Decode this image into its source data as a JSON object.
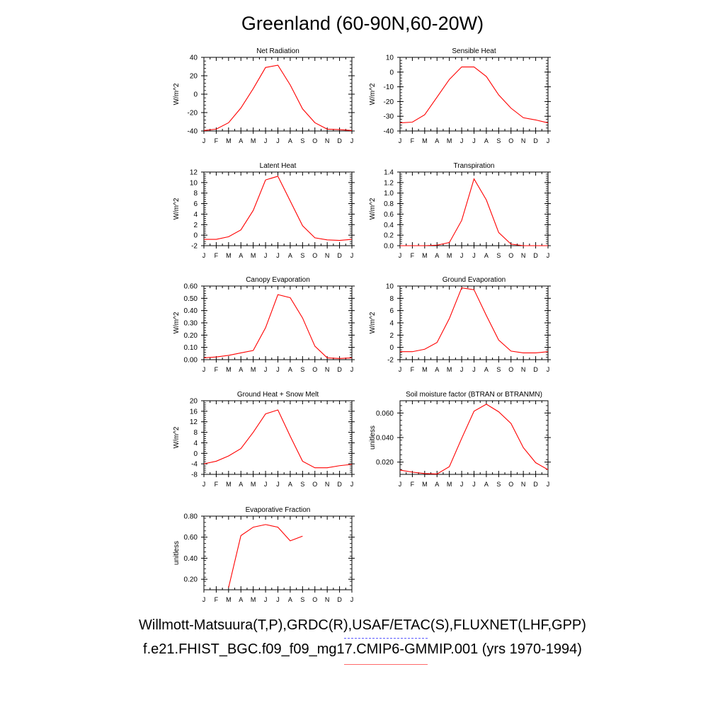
{
  "title": "Greenland (60-90N,60-20W)",
  "footer": {
    "line1": "Willmott-Matsuura(T,P),GRDC(R),USAF/ETAC(S),FLUXNET(LHF,GPP)",
    "line2": "f.e21.FHIST_BGC.f09_f09_mg17.CMIP6-GMMIP.001 (yrs 1970-1994)"
  },
  "colors": {
    "series": "#ff0000",
    "legend_obs": "#5a5aff",
    "legend_model": "#ff6a6a"
  },
  "chart_data": [
    {
      "type": "line",
      "title": "Net Radiation",
      "ylabel": "W/m^2",
      "categories": [
        "J",
        "F",
        "M",
        "A",
        "M",
        "J",
        "J",
        "A",
        "S",
        "O",
        "N",
        "D",
        "J"
      ],
      "ylim": [
        -40,
        40
      ],
      "yticks": [
        -40,
        -20,
        0,
        20,
        40
      ],
      "ytick_labels": [
        "-40",
        "-20",
        "0",
        "20",
        "40"
      ],
      "series": [
        {
          "values": [
            -39.5,
            -38,
            -31,
            -15,
            6,
            29,
            31.5,
            10,
            -16,
            -31,
            -38,
            -38.5,
            -39.5
          ]
        }
      ]
    },
    {
      "type": "line",
      "title": "Sensible Heat",
      "ylabel": "W/m^2",
      "categories": [
        "J",
        "F",
        "M",
        "A",
        "M",
        "J",
        "J",
        "A",
        "S",
        "O",
        "N",
        "D",
        "J"
      ],
      "ylim": [
        -40,
        10
      ],
      "yticks": [
        -40,
        -30,
        -20,
        -10,
        0,
        10
      ],
      "ytick_labels": [
        "-40",
        "-30",
        "-20",
        "-10",
        "0",
        "10"
      ],
      "series": [
        {
          "values": [
            -34.5,
            -34,
            -29,
            -17,
            -5,
            3.5,
            3.5,
            -3,
            -15.5,
            -24.5,
            -31,
            -32.5,
            -34.5
          ]
        }
      ]
    },
    {
      "type": "line",
      "title": "Latent Heat",
      "ylabel": "W/m^2",
      "categories": [
        "J",
        "F",
        "M",
        "A",
        "M",
        "J",
        "J",
        "A",
        "S",
        "O",
        "N",
        "D",
        "J"
      ],
      "ylim": [
        -2,
        12
      ],
      "yticks": [
        -2,
        0,
        2,
        4,
        6,
        8,
        10,
        12
      ],
      "ytick_labels": [
        "-2",
        "0",
        "2",
        "4",
        "6",
        "8",
        "10",
        "12"
      ],
      "series": [
        {
          "values": [
            -0.8,
            -0.8,
            -0.3,
            1,
            4.7,
            10.5,
            11.2,
            6.5,
            1.8,
            -0.5,
            -0.9,
            -1,
            -0.8
          ]
        }
      ]
    },
    {
      "type": "line",
      "title": "Transpiration",
      "ylabel": "W/m^2",
      "categories": [
        "J",
        "F",
        "M",
        "A",
        "M",
        "J",
        "J",
        "A",
        "S",
        "O",
        "N",
        "D",
        "J"
      ],
      "ylim": [
        0,
        1.4
      ],
      "yticks": [
        0,
        0.2,
        0.4,
        0.6,
        0.8,
        1.0,
        1.2,
        1.4
      ],
      "ytick_labels": [
        "0.0",
        "0.2",
        "0.4",
        "0.6",
        "0.8",
        "1.0",
        "1.2",
        "1.4"
      ],
      "series": [
        {
          "values": [
            0,
            0,
            0,
            0.01,
            0.06,
            0.48,
            1.27,
            0.87,
            0.25,
            0.03,
            0,
            0,
            0
          ]
        }
      ]
    },
    {
      "type": "line",
      "title": "Canopy Evaporation",
      "ylabel": "W/m^2",
      "categories": [
        "J",
        "F",
        "M",
        "A",
        "M",
        "J",
        "J",
        "A",
        "S",
        "O",
        "N",
        "D",
        "J"
      ],
      "ylim": [
        0,
        0.6
      ],
      "yticks": [
        0,
        0.1,
        0.2,
        0.3,
        0.4,
        0.5,
        0.6
      ],
      "ytick_labels": [
        "0.00",
        "0.10",
        "0.20",
        "0.30",
        "0.40",
        "0.50",
        "0.60"
      ],
      "series": [
        {
          "values": [
            0.015,
            0.022,
            0.035,
            0.055,
            0.075,
            0.26,
            0.53,
            0.505,
            0.34,
            0.11,
            0.015,
            0.01,
            0.015
          ]
        }
      ]
    },
    {
      "type": "line",
      "title": "Ground Evaporation",
      "ylabel": "W/m^2",
      "categories": [
        "J",
        "F",
        "M",
        "A",
        "M",
        "J",
        "J",
        "A",
        "S",
        "O",
        "N",
        "D",
        "J"
      ],
      "ylim": [
        -2,
        10
      ],
      "yticks": [
        -2,
        0,
        2,
        4,
        6,
        8,
        10
      ],
      "ytick_labels": [
        "-2",
        "0",
        "2",
        "4",
        "6",
        "8",
        "10"
      ],
      "series": [
        {
          "values": [
            -0.7,
            -0.7,
            -0.3,
            0.8,
            4.7,
            9.7,
            9.4,
            5.2,
            1.2,
            -0.6,
            -0.9,
            -0.9,
            -0.7
          ]
        }
      ]
    },
    {
      "type": "line",
      "title": "Ground Heat + Snow Melt",
      "ylabel": "W/m^2",
      "categories": [
        "J",
        "F",
        "M",
        "A",
        "M",
        "J",
        "J",
        "A",
        "S",
        "O",
        "N",
        "D",
        "J"
      ],
      "ylim": [
        -8,
        20
      ],
      "yticks": [
        -8,
        -4,
        0,
        4,
        8,
        12,
        16,
        20
      ],
      "ytick_labels": [
        "-8",
        "-4",
        "0",
        "4",
        "8",
        "12",
        "16",
        "20"
      ],
      "series": [
        {
          "values": [
            -4,
            -3,
            -1,
            1.8,
            8,
            15,
            16.5,
            6.5,
            -3,
            -5.5,
            -5.5,
            -4.7,
            -4.2
          ]
        }
      ]
    },
    {
      "type": "line",
      "title": "Soil moisture factor (BTRAN or BTRANMN)",
      "ylabel": "unitless",
      "categories": [
        "J",
        "F",
        "M",
        "A",
        "M",
        "J",
        "J",
        "A",
        "S",
        "O",
        "N",
        "D",
        "J"
      ],
      "ylim": [
        0.01,
        0.07
      ],
      "yticks": [
        0.02,
        0.04,
        0.06
      ],
      "ytick_labels": [
        "0.020",
        "0.040",
        "0.060"
      ],
      "series": [
        {
          "values": [
            0.0135,
            0.0118,
            0.0107,
            0.0103,
            0.0163,
            0.0393,
            0.0615,
            0.0672,
            0.061,
            0.0515,
            0.0318,
            0.0195,
            0.0138
          ]
        }
      ]
    },
    {
      "type": "line",
      "title": "Evaporative Fraction",
      "ylabel": "unitless",
      "categories": [
        "J",
        "F",
        "M",
        "A",
        "M",
        "J",
        "J",
        "A",
        "S",
        "O",
        "N",
        "D",
        "J"
      ],
      "ylim": [
        0.1,
        0.8
      ],
      "yticks": [
        0.2,
        0.4,
        0.6,
        0.8
      ],
      "ytick_labels": [
        "0.20",
        "0.40",
        "0.60",
        "0.80"
      ],
      "series": [
        {
          "values": [
            null,
            null,
            0.12,
            0.615,
            0.695,
            0.72,
            0.695,
            0.565,
            0.61,
            null,
            null,
            null,
            null
          ]
        }
      ]
    }
  ]
}
